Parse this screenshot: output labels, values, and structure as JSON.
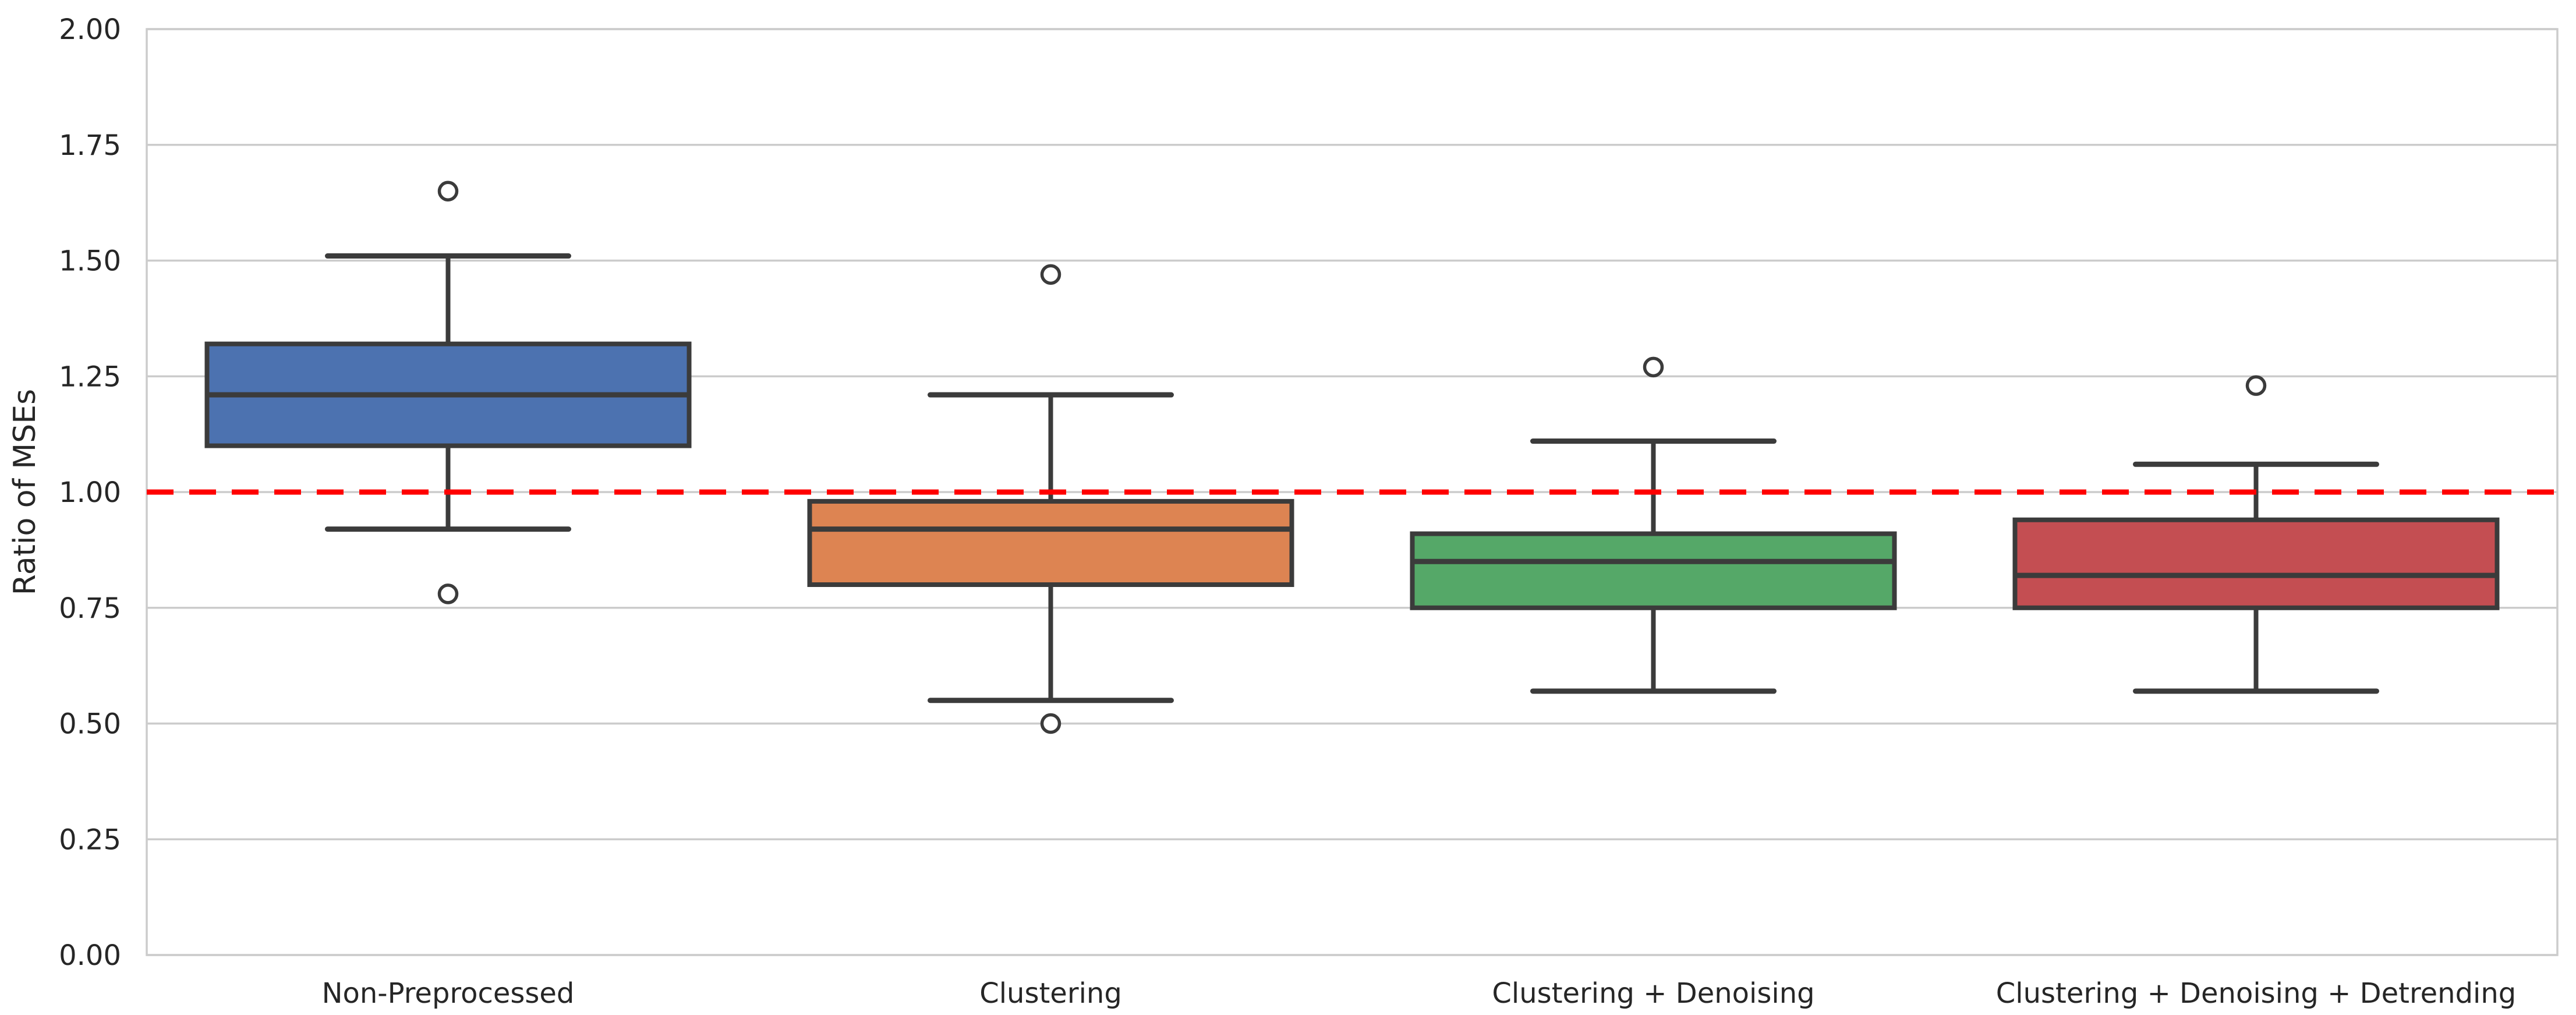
{
  "chart_data": {
    "type": "box",
    "title": "",
    "xlabel": "",
    "ylabel": "Ratio of MSEs",
    "ylim": [
      0.0,
      2.0
    ],
    "yticks": [
      0.0,
      0.25,
      0.5,
      0.75,
      1.0,
      1.25,
      1.5,
      1.75,
      2.0
    ],
    "ytick_labels": [
      "0.00",
      "0.25",
      "0.50",
      "0.75",
      "1.00",
      "1.25",
      "1.50",
      "1.75",
      "2.00"
    ],
    "grid": true,
    "legend": "none",
    "grid_color": "#cccccc",
    "spine_color": "#cccccc",
    "text_color": "#262626",
    "line_color": "#3b3b3b",
    "background_color": "#ffffff",
    "reference_line": {
      "y": 1.0,
      "color": "#ff0000",
      "style": "dashed",
      "label": ""
    },
    "categories": [
      "Non-Preprocessed",
      "Clustering",
      "Clustering + Denoising",
      "Clustering + Denoising + Detrending"
    ],
    "series": [
      {
        "label": "Non-Preprocessed",
        "color": "#4C72B0",
        "whisker_low": 0.92,
        "q1": 1.1,
        "median": 1.21,
        "q3": 1.32,
        "whisker_high": 1.51,
        "outliers": [
          1.65,
          0.78
        ]
      },
      {
        "label": "Clustering",
        "color": "#DD8452",
        "whisker_low": 0.55,
        "q1": 0.8,
        "median": 0.92,
        "q3": 0.98,
        "whisker_high": 1.21,
        "outliers": [
          1.47,
          0.5
        ]
      },
      {
        "label": "Clustering + Denoising",
        "color": "#55A868",
        "whisker_low": 0.57,
        "q1": 0.75,
        "median": 0.85,
        "q3": 0.91,
        "whisker_high": 1.11,
        "outliers": [
          1.27
        ]
      },
      {
        "label": "Clustering + Denoising + Detrending",
        "color": "#C44E52",
        "whisker_low": 0.57,
        "q1": 0.75,
        "median": 0.82,
        "q3": 0.94,
        "whisker_high": 1.06,
        "outliers": [
          1.23
        ]
      }
    ]
  }
}
